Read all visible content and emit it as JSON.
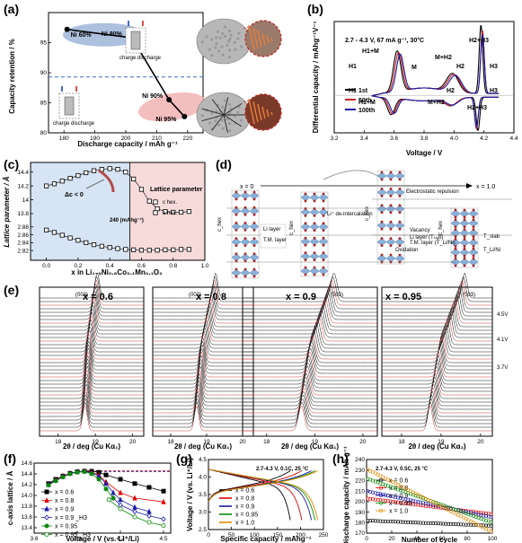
{
  "panels": {
    "a": {
      "label": "(a)"
    },
    "b": {
      "label": "(b)"
    },
    "c": {
      "label": "(c)"
    },
    "d": {
      "label": "(d)"
    },
    "e": {
      "label": "(e)"
    },
    "f": {
      "label": "(f)"
    },
    "g": {
      "label": "(g)"
    },
    "h": {
      "label": "(h)"
    }
  },
  "chart_data": [
    {
      "id": "a",
      "type": "scatter",
      "xlabel": "Discharge capacity / mAh g⁻¹",
      "ylabel": "Capacity retention / %",
      "xlim": [
        175,
        225
      ],
      "ylim": [
        80,
        100
      ],
      "xticks": [
        180,
        190,
        200,
        210,
        220
      ],
      "yticks": [
        80,
        85,
        90,
        95
      ],
      "points": [
        {
          "label": "Ni 60%",
          "x": 181,
          "y": 97.2
        },
        {
          "label": "Ni 80%",
          "x": 202,
          "y": 95.8
        },
        {
          "label": "Ni 90%",
          "x": 214,
          "y": 85.5
        },
        {
          "label": "Ni 95%",
          "x": 219,
          "y": 82.7
        }
      ],
      "dashed_line_y": 89.3,
      "annotations": [
        "charge",
        "discharge",
        "charge",
        "discharge"
      ],
      "images": [
        "secondary particle, Ni-poor (intact)",
        "secondary particle, Ni-rich (cracked)"
      ]
    },
    {
      "id": "b",
      "type": "line",
      "xlabel": "Voltage / V",
      "ylabel": "Differential capacity / mAhg⁻¹V⁻¹",
      "xlim": [
        3.2,
        4.4
      ],
      "ylim": [
        -1000,
        2000
      ],
      "xticks": [
        3.2,
        3.4,
        3.6,
        3.8,
        4.0,
        4.2,
        4.4
      ],
      "condition": "2.7 - 4.3 V, 67 mA g⁻¹, 30°C",
      "peak_labels": [
        "H1+M",
        "H1",
        "M",
        "M+H2",
        "H2",
        "H2+H3",
        "H3",
        "H1",
        "H1+M",
        "M+H2",
        "H2",
        "H2+H3",
        "H3"
      ],
      "series": [
        {
          "name": "1st",
          "color": "#000000",
          "peaks_charge": [
            [
              3.62,
              1100
            ],
            [
              3.99,
              500
            ],
            [
              4.18,
              1850
            ]
          ],
          "peaks_discharge": [
            [
              3.58,
              -450
            ],
            [
              3.98,
              -200
            ],
            [
              4.16,
              -900
            ]
          ]
        },
        {
          "name": "50th",
          "color": "#cc2222",
          "peaks_charge": [
            [
              3.63,
              1050
            ],
            [
              4.0,
              480
            ],
            [
              4.19,
              1700
            ]
          ],
          "peaks_discharge": [
            [
              3.59,
              -430
            ],
            [
              3.98,
              -190
            ],
            [
              4.15,
              -850
            ]
          ]
        },
        {
          "name": "100th",
          "color": "#1a1aa8",
          "peaks_charge": [
            [
              3.64,
              1000
            ],
            [
              4.01,
              460
            ],
            [
              4.19,
              1600
            ]
          ],
          "peaks_discharge": [
            [
              3.6,
              -410
            ],
            [
              3.99,
              -180
            ],
            [
              4.15,
              -800
            ]
          ]
        }
      ]
    },
    {
      "id": "c",
      "type": "scatter",
      "xlabel": "x in Li₁₋ₓNi₀.₈Co₀.₁Mn₀.₁O₂",
      "ylabel": "Lattice parameter / Å",
      "xlim": [
        -0.1,
        1.0
      ],
      "ylim_c": [
        13.8,
        14.5
      ],
      "ylim_a": [
        2.8,
        2.9
      ],
      "xticks": [
        0.0,
        0.2,
        0.4,
        0.6,
        0.8,
        1.0
      ],
      "yticks_c": [
        13.8,
        14.0,
        14.2,
        14.4
      ],
      "yticks_a": [
        2.82,
        2.84,
        2.86,
        2.88
      ],
      "legend_title": "Lattice parameter",
      "legend": [
        "c hex.",
        "a hex."
      ],
      "annotations": [
        "Δc < 0",
        "240 (mAhg⁻¹)"
      ],
      "c_series": {
        "x": [
          0.0,
          0.05,
          0.1,
          0.15,
          0.2,
          0.25,
          0.3,
          0.35,
          0.4,
          0.45,
          0.5,
          0.55,
          0.6,
          0.65,
          0.7,
          0.75,
          0.8,
          0.85,
          0.9
        ],
        "y": [
          14.2,
          14.23,
          14.27,
          14.31,
          14.35,
          14.39,
          14.42,
          14.44,
          14.45,
          14.44,
          14.4,
          14.3,
          14.15,
          13.98,
          13.87,
          13.83,
          13.82,
          13.82,
          13.83
        ]
      },
      "a_series": {
        "x": [
          0.0,
          0.05,
          0.1,
          0.15,
          0.2,
          0.25,
          0.3,
          0.35,
          0.4,
          0.45,
          0.5,
          0.55,
          0.6,
          0.65,
          0.7,
          0.75,
          0.8,
          0.85,
          0.9
        ],
        "y": [
          2.872,
          2.866,
          2.859,
          2.852,
          2.846,
          2.84,
          2.835,
          2.831,
          2.828,
          2.825,
          2.823,
          2.822,
          2.821,
          2.821,
          2.821,
          2.822,
          2.822,
          2.823,
          2.823
        ]
      }
    },
    {
      "id": "d",
      "type": "diagram",
      "labels": [
        "x = 0",
        "x = 1.0",
        "Electrostatic repulsion",
        "Vacancy",
        "Li⁺ de-intercalation",
        "Oxidation",
        "Li layer (Tₛₗₐb)",
        "T.M. layer (T_Li/Ni)",
        "Li layer",
        "T.M. layer",
        "c_hex",
        "c_hex",
        "c_hex",
        "c_hex",
        "T_slab",
        "T_Li/Ni"
      ]
    },
    {
      "id": "e",
      "type": "line",
      "xlabel": "2θ / deg (Cu Kα₁)",
      "xticks": [
        18,
        19,
        20
      ],
      "panels": [
        "x = 0.6",
        "x = 0.8",
        "x = 0.9",
        "x = 0.95"
      ],
      "peak_label": "(003)",
      "voltage_labels": [
        "4.5V",
        "4.1V",
        "3.7V"
      ],
      "peak_2theta_start": [
        18.72,
        18.72,
        18.72,
        18.72
      ],
      "peak_2theta_end": [
        19.05,
        19.25,
        19.4,
        19.6
      ]
    },
    {
      "id": "f",
      "type": "line",
      "xlabel": "Voltage / V (vs. Li⁺/Li)",
      "ylabel": "c-axis lattice / Å",
      "xlim": [
        3.6,
        4.55
      ],
      "ylim": [
        13.3,
        14.6
      ],
      "xticks": [
        3.6,
        3.9,
        4.2,
        4.5
      ],
      "yticks": [
        13.4,
        13.6,
        13.8,
        14.0,
        14.2,
        14.4,
        14.6
      ],
      "series": [
        {
          "name": "x = 0.6",
          "color": "#000000",
          "marker": "square",
          "x": [
            3.7,
            3.75,
            3.8,
            3.85,
            3.9,
            3.95,
            4.0,
            4.05,
            4.1,
            4.2,
            4.3,
            4.4,
            4.5
          ],
          "y": [
            14.22,
            14.3,
            14.36,
            14.41,
            14.44,
            14.45,
            14.45,
            14.43,
            14.38,
            14.3,
            14.22,
            14.15,
            14.08
          ]
        },
        {
          "name": "x = 0.8",
          "color": "#e00000",
          "marker": "triangle",
          "x": [
            3.7,
            3.75,
            3.8,
            3.85,
            3.9,
            3.95,
            4.0,
            4.05,
            4.1,
            4.2,
            4.3,
            4.5
          ],
          "y": [
            14.2,
            14.29,
            14.36,
            14.41,
            14.44,
            14.45,
            14.43,
            14.38,
            14.25,
            14.05,
            13.95,
            13.88
          ]
        },
        {
          "name": "x = 0.9",
          "color": "#1a1aa8",
          "marker": "triangle",
          "x": [
            3.7,
            3.75,
            3.8,
            3.85,
            3.9,
            3.95,
            4.0,
            4.05,
            4.1,
            4.15,
            4.2,
            4.3,
            4.4
          ],
          "y": [
            14.2,
            14.28,
            14.35,
            14.41,
            14.44,
            14.45,
            14.42,
            14.36,
            14.22,
            14.05,
            13.92,
            13.78,
            13.7
          ]
        },
        {
          "name": "x = 0.9 _H3",
          "color": "#1a1aa8",
          "marker": "diamond-open",
          "x": [
            4.15,
            4.2,
            4.3,
            4.4,
            4.5
          ],
          "y": [
            13.95,
            13.82,
            13.7,
            13.62,
            13.56
          ]
        },
        {
          "name": "x = 0.95",
          "color": "#0a8a0a",
          "marker": "circle",
          "x": [
            3.7,
            3.75,
            3.8,
            3.85,
            3.9,
            3.95,
            4.0,
            4.05,
            4.1,
            4.15
          ],
          "y": [
            14.19,
            14.27,
            14.34,
            14.4,
            14.43,
            14.44,
            14.4,
            14.3,
            14.12,
            13.95
          ]
        },
        {
          "name": "x = 0.95 _H3",
          "color": "#0a8a0a",
          "marker": "circle-open",
          "x": [
            4.12,
            4.2,
            4.3,
            4.4,
            4.5
          ],
          "y": [
            13.92,
            13.75,
            13.6,
            13.5,
            13.44
          ]
        }
      ],
      "dashed_lines": [
        {
          "color": "#e00000",
          "y": 14.46
        },
        {
          "color": "#1a1aa8",
          "y": 14.44
        }
      ]
    },
    {
      "id": "g",
      "type": "line",
      "xlabel": "Specific capacity / mAhg⁻¹",
      "ylabel": "Voltage / V (vs. Li⁺/Li)",
      "xlim": [
        0,
        250
      ],
      "ylim": [
        2.5,
        4.5
      ],
      "xticks": [
        0,
        50,
        100,
        150,
        200,
        250
      ],
      "yticks": [
        2.5,
        3.0,
        3.5,
        4.0,
        4.5
      ],
      "condition": "2.7-4.3 V, 0.1C, 25 °C",
      "series": [
        {
          "name": "x = 0.6",
          "color": "#000000",
          "capacity": 178
        },
        {
          "name": "x = 0.8",
          "color": "#e00000",
          "capacity": 203
        },
        {
          "name": "x = 0.9",
          "color": "#1a1aa8",
          "capacity": 224
        },
        {
          "name": "x = 0.95",
          "color": "#0a8a0a",
          "capacity": 232
        },
        {
          "name": "x = 1.0",
          "color": "#e08a00",
          "capacity": 238
        }
      ]
    },
    {
      "id": "h",
      "type": "line",
      "xlabel": "Number of cycle",
      "ylabel": "Discharge capacity / mAh g⁻¹",
      "xlim": [
        0,
        100
      ],
      "ylim": [
        170,
        240
      ],
      "xticks": [
        0,
        20,
        40,
        60,
        80,
        100
      ],
      "yticks": [
        170,
        180,
        190,
        200,
        210,
        220,
        230,
        240
      ],
      "condition": "2.7-4.3 V, 0.5C, 25 °C",
      "series": [
        {
          "name": "x = 0.6",
          "color": "#000000",
          "start": 182,
          "end": 177
        },
        {
          "name": "x = 0.8",
          "color": "#e00000",
          "start": 203,
          "end": 188
        },
        {
          "name": "x = 0.9",
          "color": "#1a1aa8",
          "start": 210,
          "end": 185
        },
        {
          "name": "x = 0.95",
          "color": "#0a8a0a",
          "start": 222,
          "end": 180
        },
        {
          "name": "x = 1.0",
          "color": "#e08a00",
          "start": 231,
          "end": 171
        }
      ]
    }
  ]
}
